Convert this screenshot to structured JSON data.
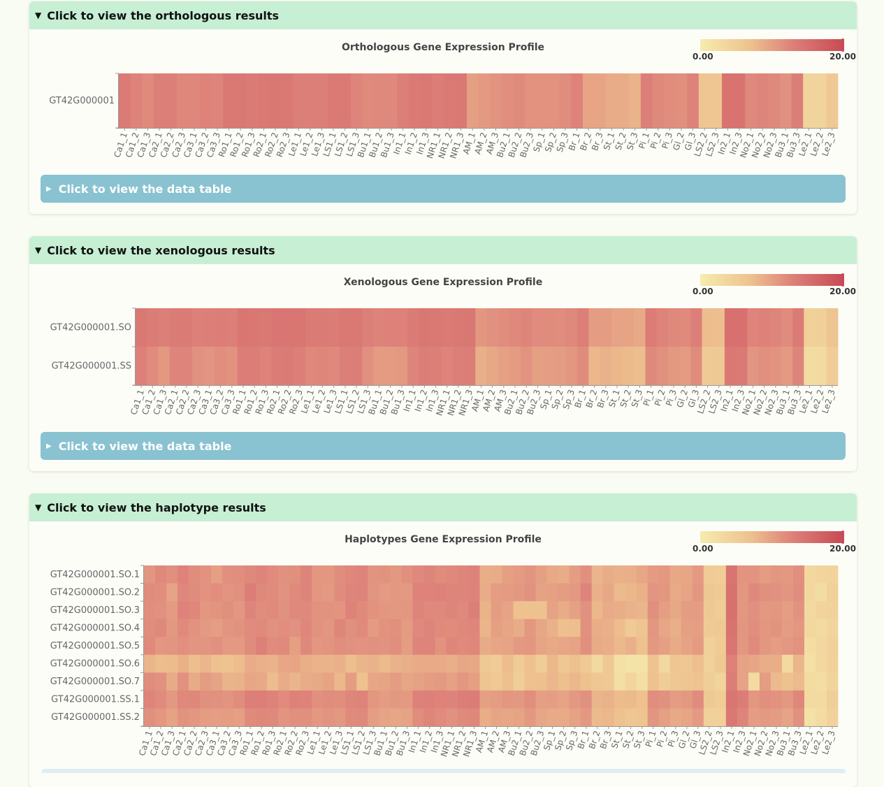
{
  "sections": [
    {
      "header": "Click to view the orthologous results",
      "title": "Orthologous Gene Expression Profile",
      "table_toggle": "Click to view the data table"
    },
    {
      "header": "Click to view the xenologous results",
      "title": "Xenologous Gene Expression Profile",
      "table_toggle": "Click to view the data table"
    },
    {
      "header": "Click to view the haplotype results",
      "title": "Haplotypes Gene Expression Profile"
    }
  ],
  "visual_map": {
    "min_label": "0.00",
    "max_label": "20.00",
    "min": 0,
    "max": 20,
    "colors": [
      "#f6ecae",
      "#eec28f",
      "#dd8079",
      "#c84b55"
    ]
  },
  "chart_data": [
    {
      "type": "heatmap",
      "title": "Orthologous Gene Expression Profile",
      "rows": [
        "GT42G000001"
      ],
      "columns": [
        "Ca1_1",
        "Ca1_2",
        "Ca1_3",
        "Ca2_1",
        "Ca2_2",
        "Ca2_3",
        "Ca3_1",
        "Ca3_2",
        "Ca3_3",
        "Ro1_1",
        "Ro1_2",
        "Ro1_3",
        "Ro2_1",
        "Ro2_2",
        "Ro2_3",
        "Le1_1",
        "Le1_2",
        "Le1_3",
        "LS1_1",
        "LS1_2",
        "LS1_3",
        "Bu1_1",
        "Bu1_2",
        "Bu1_3",
        "In1_1",
        "In1_2",
        "In1_3",
        "NR1_1",
        "NR1_2",
        "NR1_3",
        "AM_1",
        "AM_2",
        "AM_3",
        "Bu2_1",
        "Bu2_2",
        "Bu2_3",
        "Sp_1",
        "Sp_2",
        "Sp_3",
        "Br_1",
        "Br_2",
        "Br_3",
        "St_1",
        "St_2",
        "St_3",
        "Pi_1",
        "Pi_2",
        "Pi_3",
        "Gl_2",
        "Gl_3",
        "LS2_2",
        "LS2_3",
        "In2_1",
        "In2_3",
        "No2_1",
        "No2_2",
        "No2_3",
        "Bu3_1",
        "Bu3_3",
        "Le2_1",
        "Le2_2",
        "Le2_3"
      ],
      "values": [
        [
          13.9,
          13.1,
          12.3,
          13.5,
          13.5,
          12.6,
          12.6,
          13.1,
          12.9,
          14.3,
          14.3,
          13.9,
          14.3,
          14.5,
          14.3,
          13.5,
          13.5,
          13.5,
          14.1,
          14.1,
          12.9,
          12.3,
          12.5,
          12.5,
          13.5,
          14.1,
          14.3,
          13.7,
          14.1,
          14.3,
          10.2,
          10.7,
          11.3,
          11.9,
          12.3,
          11.5,
          11.5,
          11.5,
          12.0,
          13.1,
          9.6,
          9.6,
          8.9,
          8.9,
          8.2,
          13.4,
          12.5,
          12.0,
          11.7,
          13.0,
          6.2,
          6.2,
          15.0,
          15.0,
          12.4,
          12.8,
          12.4,
          11.6,
          13.6,
          3.8,
          3.8,
          5.6
        ]
      ],
      "visual_map": {
        "min": 0,
        "max": 20
      }
    },
    {
      "type": "heatmap",
      "title": "Xenologous Gene Expression Profile",
      "rows": [
        "GT42G000001.SO",
        "GT42G000001.SS"
      ],
      "columns": [
        "Ca1_1",
        "Ca1_2",
        "Ca1_3",
        "Ca2_1",
        "Ca2_2",
        "Ca2_3",
        "Ca3_1",
        "Ca3_2",
        "Ca3_3",
        "Ro1_1",
        "Ro1_2",
        "Ro1_3",
        "Ro2_1",
        "Ro2_2",
        "Ro2_3",
        "Le1_1",
        "Le1_2",
        "Le1_3",
        "LS1_1",
        "LS1_2",
        "LS1_3",
        "Bu1_1",
        "Bu1_2",
        "Bu1_3",
        "In1_1",
        "In1_2",
        "In1_3",
        "NR1_1",
        "NR1_2",
        "NR1_3",
        "AM_1",
        "AM_2",
        "AM_3",
        "Bu2_1",
        "Bu2_2",
        "Bu2_3",
        "Sp_1",
        "Sp_2",
        "Sp_3",
        "Br_1",
        "Br_2",
        "Br_3",
        "St_1",
        "St_2",
        "St_3",
        "Pi_1",
        "Pi_2",
        "Pi_3",
        "Gl_2",
        "Gl_3",
        "LS2_2",
        "LS2_3",
        "In2_1",
        "In2_3",
        "No2_1",
        "No2_2",
        "No2_3",
        "Bu3_1",
        "Bu3_3",
        "Le2_1",
        "Le2_2",
        "Le2_3"
      ],
      "values": [
        [
          14.2,
          13.8,
          13.4,
          13.9,
          14.0,
          13.3,
          13.4,
          13.7,
          13.5,
          14.6,
          14.5,
          14.2,
          14.7,
          14.7,
          14.6,
          13.9,
          13.9,
          13.8,
          14.3,
          14.4,
          13.4,
          13.0,
          13.2,
          13.2,
          14.0,
          14.5,
          14.4,
          14.1,
          14.4,
          14.5,
          11.0,
          11.6,
          12.0,
          12.5,
          12.8,
          12.2,
          12.1,
          12.0,
          12.5,
          13.5,
          10.4,
          10.5,
          9.8,
          9.7,
          9.2,
          13.8,
          13.0,
          12.5,
          12.3,
          13.4,
          7.2,
          7.0,
          15.3,
          15.3,
          12.9,
          13.2,
          12.8,
          12.2,
          13.9,
          4.5,
          4.6,
          6.4
        ],
        [
          13.3,
          12.2,
          10.8,
          12.8,
          12.9,
          11.6,
          11.2,
          11.9,
          11.5,
          13.7,
          13.6,
          13.1,
          13.8,
          13.9,
          13.4,
          12.5,
          12.7,
          12.4,
          13.5,
          13.6,
          11.8,
          10.6,
          10.6,
          10.9,
          12.8,
          13.7,
          13.5,
          12.9,
          13.5,
          13.6,
          8.6,
          9.3,
          10.0,
          10.6,
          11.4,
          10.1,
          10.3,
          10.4,
          11.0,
          12.1,
          7.8,
          8.3,
          7.8,
          7.4,
          7.1,
          12.4,
          11.8,
          10.9,
          10.6,
          12.1,
          5.4,
          5.5,
          14.3,
          14.1,
          11.2,
          11.8,
          11.4,
          10.7,
          12.8,
          2.6,
          2.9,
          4.9
        ]
      ],
      "visual_map": {
        "min": 0,
        "max": 20
      }
    },
    {
      "type": "heatmap",
      "title": "Haplotypes Gene Expression Profile",
      "rows": [
        "GT42G000001.SO.1",
        "GT42G000001.SO.2",
        "GT42G000001.SO.3",
        "GT42G000001.SO.4",
        "GT42G000001.SO.5",
        "GT42G000001.SO.6",
        "GT42G000001.SO.7",
        "GT42G000001.SS.1",
        "GT42G000001.SS.2"
      ],
      "columns": [
        "Ca1_1",
        "Ca1_2",
        "Ca1_3",
        "Ca2_1",
        "Ca2_2",
        "Ca2_3",
        "Ca3_1",
        "Ca3_2",
        "Ca3_3",
        "Ro1_1",
        "Ro1_2",
        "Ro1_3",
        "Ro2_1",
        "Ro2_2",
        "Ro2_3",
        "Le1_1",
        "Le1_2",
        "Le1_3",
        "LS1_1",
        "LS1_2",
        "LS1_3",
        "Bu1_1",
        "Bu1_2",
        "Bu1_3",
        "In1_1",
        "In1_2",
        "In1_3",
        "NR1_1",
        "NR1_2",
        "NR1_3",
        "AM_1",
        "AM_2",
        "AM_3",
        "Bu2_1",
        "Bu2_2",
        "Bu2_3",
        "Sp_1",
        "Sp_2",
        "Sp_3",
        "Br_1",
        "Br_2",
        "Br_3",
        "St_1",
        "St_2",
        "St_3",
        "Pi_1",
        "Pi_2",
        "Pi_3",
        "Gl_2",
        "Gl_3",
        "LS2_2",
        "LS2_3",
        "In2_1",
        "In2_3",
        "No2_1",
        "No2_2",
        "No2_3",
        "Bu3_1",
        "Bu3_3",
        "Le2_1",
        "Le2_2",
        "Le2_3"
      ],
      "values": [
        [
          11.2,
          12.4,
          11.8,
          13.1,
          12.0,
          11.5,
          10.2,
          11.8,
          11.9,
          12.5,
          12.9,
          12.2,
          11.6,
          11.7,
          12.8,
          11.1,
          11.0,
          12.0,
          12.6,
          12.9,
          11.3,
          11.4,
          10.8,
          11.8,
          12.5,
          12.8,
          12.1,
          12.5,
          12.7,
          13.0,
          8.7,
          8.9,
          10.2,
          10.6,
          11.2,
          10.1,
          9.2,
          8.9,
          10.4,
          11.7,
          8.0,
          8.9,
          8.4,
          8.6,
          9.5,
          10.6,
          10.9,
          9.3,
          9.5,
          10.7,
          5.2,
          5.0,
          14.9,
          11.3,
          11.3,
          10.5,
          11.1,
          10.8,
          11.8,
          3.2,
          3.6,
          3.9
        ],
        [
          12.1,
          11.9,
          9.8,
          12.6,
          12.1,
          11.5,
          11.9,
          11.3,
          11.8,
          13.7,
          12.5,
          12.1,
          11.5,
          12.3,
          12.8,
          11.0,
          10.7,
          12.2,
          12.8,
          13.0,
          11.2,
          10.6,
          10.8,
          10.7,
          13.1,
          13.0,
          13.2,
          12.8,
          12.8,
          13.0,
          8.9,
          10.4,
          10.6,
          10.8,
          11.6,
          9.9,
          10.0,
          10.5,
          10.8,
          12.9,
          8.5,
          9.3,
          7.4,
          7.8,
          8.4,
          11.2,
          11.0,
          9.1,
          9.7,
          11.1,
          5.8,
          5.4,
          15.1,
          11.0,
          12.4,
          11.7,
          11.6,
          11.2,
          12.0,
          3.1,
          2.5,
          4.5
        ],
        [
          11.9,
          11.6,
          10.6,
          13.0,
          12.6,
          11.1,
          11.3,
          11.7,
          11.0,
          12.8,
          12.0,
          12.3,
          11.6,
          12.5,
          12.4,
          11.5,
          11.4,
          11.3,
          13.1,
          12.3,
          11.5,
          11.0,
          10.8,
          11.0,
          12.8,
          12.4,
          12.5,
          12.8,
          12.4,
          13.5,
          8.2,
          10.4,
          9.8,
          6.8,
          6.7,
          6.7,
          9.9,
          8.9,
          10.0,
          11.6,
          7.8,
          9.1,
          8.7,
          8.3,
          8.0,
          11.7,
          10.3,
          9.3,
          10.5,
          10.4,
          5.5,
          4.9,
          15.2,
          11.1,
          11.8,
          10.9,
          11.0,
          10.3,
          11.4,
          3.0,
          3.8,
          4.1
        ],
        [
          12.0,
          12.5,
          10.8,
          12.3,
          11.5,
          10.7,
          10.3,
          11.2,
          11.4,
          12.2,
          12.3,
          11.6,
          11.9,
          11.6,
          12.6,
          11.4,
          11.1,
          12.7,
          11.8,
          12.3,
          10.6,
          11.4,
          11.7,
          10.6,
          12.4,
          12.8,
          12.3,
          12.1,
          12.5,
          12.7,
          8.0,
          10.2,
          9.6,
          8.9,
          10.9,
          9.5,
          8.4,
          6.9,
          7.1,
          11.6,
          8.7,
          8.5,
          7.2,
          5.4,
          6.4,
          11.0,
          9.5,
          8.6,
          10.2,
          10.3,
          5.4,
          5.6,
          15.0,
          11.2,
          11.9,
          11.0,
          11.4,
          10.4,
          11.0,
          3.4,
          2.9,
          3.7
        ],
        [
          12.3,
          11.0,
          11.2,
          11.8,
          11.2,
          11.2,
          11.6,
          10.7,
          10.7,
          12.1,
          13.3,
          12.2,
          12.3,
          10.2,
          12.4,
          11.1,
          11.3,
          11.9,
          11.6,
          11.5,
          11.6,
          11.4,
          11.9,
          10.5,
          12.8,
          12.9,
          11.5,
          12.7,
          12.3,
          12.6,
          9.0,
          9.6,
          9.8,
          10.7,
          11.1,
          9.6,
          9.2,
          9.5,
          9.8,
          11.7,
          9.0,
          8.8,
          7.6,
          8.5,
          6.8,
          10.8,
          10.1,
          9.0,
          9.9,
          10.6,
          4.4,
          5.3,
          14.7,
          11.1,
          12.3,
          11.1,
          10.4,
          10.9,
          11.5,
          2.4,
          3.1,
          4.5
        ],
        [
          8.0,
          7.2,
          7.3,
          8.4,
          7.1,
          7.9,
          6.8,
          6.5,
          7.2,
          8.9,
          8.5,
          8.2,
          9.5,
          9.6,
          8.6,
          8.2,
          8.1,
          8.5,
          7.0,
          8.0,
          8.3,
          7.5,
          8.3,
          8.6,
          9.1,
          9.1,
          9.1,
          8.6,
          9.4,
          9.3,
          5.5,
          5.1,
          7.2,
          5.2,
          6.8,
          5.0,
          7.7,
          5.8,
          6.9,
          5.5,
          3.0,
          5.8,
          1.9,
          1.5,
          1.4,
          6.5,
          3.1,
          6.2,
          5.8,
          7.0,
          4.2,
          5.7,
          13.2,
          9.9,
          9.5,
          8.7,
          8.7,
          3.0,
          7.9,
          1.9,
          3.2,
          4.3
        ],
        [
          12.0,
          11.6,
          9.0,
          11.6,
          9.0,
          10.4,
          9.8,
          8.1,
          8.3,
          9.4,
          9.2,
          7.2,
          8.9,
          8.0,
          8.9,
          9.2,
          9.7,
          7.7,
          10.5,
          6.7,
          9.4,
          9.7,
          10.5,
          9.4,
          9.9,
          10.4,
          10.7,
          10.0,
          11.0,
          10.2,
          6.3,
          5.7,
          6.9,
          4.8,
          6.8,
          6.9,
          7.9,
          6.9,
          7.7,
          6.6,
          5.8,
          5.6,
          2.3,
          3.6,
          2.2,
          6.6,
          5.0,
          5.8,
          6.0,
          6.5,
          4.7,
          3.8,
          13.6,
          9.8,
          2.9,
          10.5,
          7.4,
          6.6,
          7.5,
          2.7,
          2.4,
          3.8
        ],
        [
          12.9,
          12.2,
          10.9,
          12.5,
          12.6,
          11.7,
          11.6,
          11.3,
          12.0,
          13.4,
          13.4,
          13.0,
          12.2,
          13.2,
          13.1,
          11.7,
          12.0,
          11.9,
          12.7,
          13.0,
          11.1,
          10.5,
          10.8,
          10.7,
          13.2,
          13.3,
          13.1,
          13.0,
          13.6,
          13.8,
          10.1,
          10.5,
          11.0,
          10.8,
          11.9,
          10.2,
          10.3,
          9.8,
          10.9,
          11.6,
          8.0,
          8.3,
          7.3,
          7.4,
          6.8,
          11.9,
          11.6,
          10.4,
          10.8,
          12.2,
          5.6,
          5.1,
          14.7,
          13.8,
          11.1,
          11.8,
          11.5,
          10.8,
          12.6,
          2.8,
          2.9,
          4.7
        ],
        [
          11.8,
          11.1,
          9.9,
          11.4,
          11.0,
          10.4,
          10.3,
          10.5,
          10.2,
          12.3,
          12.6,
          12.5,
          11.3,
          11.8,
          11.7,
          10.9,
          11.3,
          10.9,
          12.3,
          12.4,
          10.3,
          9.8,
          9.5,
          9.8,
          12.0,
          12.7,
          12.2,
          11.6,
          12.3,
          12.6,
          8.7,
          9.6,
          9.4,
          9.7,
          10.9,
          9.5,
          9.1,
          9.1,
          9.9,
          10.8,
          7.4,
          7.8,
          6.7,
          6.1,
          6.3,
          11.2,
          10.2,
          9.2,
          9.6,
          10.7,
          4.4,
          4.4,
          14.3,
          12.9,
          10.4,
          10.7,
          10.4,
          9.8,
          11.6,
          1.8,
          2.5,
          4.1
        ]
      ],
      "visual_map": {
        "min": 0,
        "max": 20
      }
    }
  ]
}
